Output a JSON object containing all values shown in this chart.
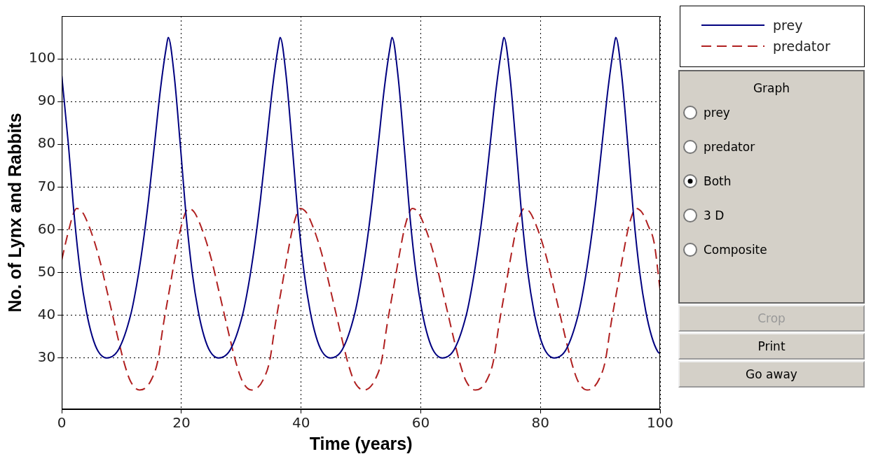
{
  "chart_data": {
    "type": "line",
    "xlabel": "Time (years)",
    "ylabel": "No. of Lynx and Rabbits",
    "xlim": [
      0,
      100
    ],
    "xticks": [
      0,
      20,
      40,
      60,
      80,
      100
    ],
    "ylim": [
      18,
      110
    ],
    "yticks": [
      30,
      40,
      50,
      60,
      70,
      80,
      90,
      100
    ],
    "grid": true,
    "legend": "right",
    "marker": "none",
    "series": [
      {
        "name": "prey",
        "color": "#000080",
        "line_style": "solid",
        "x": [
          0,
          1.1,
          2.1,
          3.1,
          4.1,
          5.1,
          6.1,
          7.5,
          9.5,
          11.5,
          12.5,
          13.5,
          14.5,
          15.5,
          16.5,
          17.5,
          17.8,
          18.8,
          19.8,
          20.8,
          21.8,
          22.8,
          23.8,
          24.8,
          26.2,
          28.2,
          30.2,
          31.2,
          32.2,
          33.2,
          34.2,
          35.2,
          36.2,
          36.5,
          37.5,
          38.5,
          39.5,
          40.5,
          41.5,
          42.5,
          43.5,
          44.9,
          46.9,
          48.9,
          49.9,
          50.9,
          51.9,
          52.9,
          53.9,
          54.9,
          55.2,
          56.2,
          57.2,
          58.2,
          59.2,
          60.2,
          61.2,
          62.2,
          63.6,
          65.6,
          67.6,
          68.6,
          69.6,
          70.6,
          71.6,
          72.6,
          73.6,
          73.9,
          74.9,
          75.9,
          76.9,
          77.9,
          78.9,
          79.9,
          80.9,
          82.3,
          84.3,
          86.3,
          87.3,
          88.3,
          89.3,
          90.3,
          91.3,
          92.3,
          92.6,
          93.6,
          94.6,
          95.6,
          96.6,
          97.6,
          98.6,
          99.6,
          100
        ],
        "values": [
          96,
          80,
          63,
          50,
          41,
          35,
          31.5,
          30,
          32,
          40,
          47,
          56,
          67,
          80,
          93,
          103,
          105,
          96,
          80,
          63,
          50,
          41,
          35,
          31.5,
          30,
          32,
          40,
          47,
          56,
          67,
          80,
          93,
          103,
          105,
          96,
          80,
          63,
          50,
          41,
          35,
          31.5,
          30,
          32,
          40,
          47,
          56,
          67,
          80,
          93,
          103,
          105,
          96,
          80,
          63,
          50,
          41,
          35,
          31.5,
          30,
          32,
          40,
          47,
          56,
          67,
          80,
          93,
          103,
          105,
          96,
          80,
          63,
          50,
          41,
          35,
          31.5,
          30,
          32,
          40,
          47,
          56,
          67,
          80,
          93,
          103,
          105,
          96,
          80,
          63,
          50,
          41,
          35,
          31.5,
          31
        ]
      },
      {
        "name": "predator",
        "color": "#b02020",
        "line_style": "dashed",
        "x": [
          0,
          1,
          2,
          2.5,
          3.5,
          4.5,
          5.5,
          6.5,
          7.5,
          8.5,
          9.5,
          10.5,
          11.5,
          13,
          14,
          15,
          16,
          17,
          18,
          19,
          20,
          21.2,
          22.2,
          23.2,
          24.2,
          25.2,
          26.2,
          27.2,
          28.2,
          29.2,
          30.2,
          31.7,
          32.7,
          33.7,
          34.7,
          35.7,
          36.7,
          37.7,
          38.7,
          39.9,
          40.9,
          41.9,
          42.9,
          43.9,
          44.9,
          45.9,
          46.9,
          47.9,
          48.9,
          50.4,
          51.4,
          52.4,
          53.4,
          54.4,
          55.4,
          56.4,
          57.4,
          58.6,
          59.6,
          60.6,
          61.6,
          62.6,
          63.6,
          64.6,
          65.6,
          66.6,
          67.6,
          69.1,
          70.1,
          71.1,
          72.1,
          73.1,
          74.1,
          75.1,
          76.1,
          77.3,
          78.3,
          79.3,
          80.3,
          81.3,
          82.3,
          83.3,
          84.3,
          85.3,
          86.3,
          87.8,
          88.8,
          89.8,
          90.8,
          91.8,
          92.8,
          93.8,
          94.8,
          96,
          97,
          98,
          99,
          100
        ],
        "values": [
          53,
          59,
          64,
          65,
          64,
          61,
          57,
          52,
          46,
          40,
          34,
          28.5,
          24.5,
          22.5,
          23,
          25,
          29,
          38,
          46,
          54,
          61,
          65,
          64,
          61,
          57,
          52,
          46,
          40,
          34,
          28.5,
          24.5,
          22.5,
          23,
          25,
          29,
          38,
          46,
          54,
          61,
          65,
          64,
          61,
          57,
          52,
          46,
          40,
          34,
          28.5,
          24.5,
          22.5,
          23,
          25,
          29,
          38,
          46,
          54,
          61,
          65,
          64,
          61,
          57,
          52,
          46,
          40,
          34,
          28.5,
          24.5,
          22.5,
          23,
          25,
          29,
          38,
          46,
          54,
          61,
          65,
          64,
          61,
          57,
          52,
          46,
          40,
          34,
          28.5,
          24.5,
          22.5,
          23,
          25,
          29,
          38,
          46,
          54,
          61,
          65,
          64,
          61,
          57,
          46
        ]
      }
    ],
    "annotations": [
      "Graph",
      "prey",
      "predator",
      "Both",
      "3 D",
      "Composite",
      "Crop",
      "Print",
      "Go away"
    ]
  }
}
